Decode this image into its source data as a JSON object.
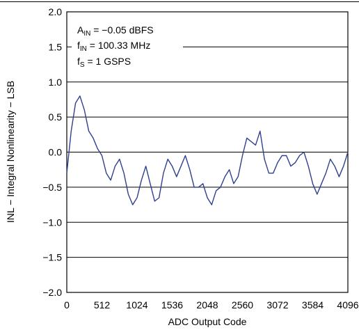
{
  "chart_data": {
    "type": "line",
    "title": "",
    "xlabel": "ADC Output Code",
    "ylabel": "INL − Integral Nonlinearity − LSB",
    "xlim": [
      0,
      4096
    ],
    "ylim": [
      -2.0,
      2.0
    ],
    "x_ticks": [
      0,
      512,
      1024,
      1536,
      2048,
      2560,
      3072,
      3584,
      4096
    ],
    "x_tick_labels": [
      "0",
      "512",
      "1024",
      "1536",
      "2048",
      "2560",
      "3072",
      "3584",
      "4096"
    ],
    "y_ticks": [
      2.0,
      1.5,
      1.0,
      0.5,
      0.0,
      -0.5,
      -1.0,
      -1.5,
      -2.0
    ],
    "y_tick_labels": [
      "2.0",
      "1.5",
      "1.0",
      "0.5",
      "0.0",
      "−0.5",
      "−1.0",
      "−1.5",
      "−2.0"
    ],
    "grid": "horizontal",
    "annotations": [
      {
        "main": "A",
        "sub": "IN",
        "rest": " = −0.05 dBFS"
      },
      {
        "main": "f",
        "sub": "IN",
        "rest": " = 100.33 MHz"
      },
      {
        "main": "f",
        "sub": "S",
        "rest": " = 1 GSPS"
      }
    ],
    "series": [
      {
        "color": "#2e3f8f",
        "x": [
          0,
          64,
          128,
          192,
          256,
          320,
          384,
          448,
          512,
          576,
          640,
          704,
          768,
          832,
          896,
          960,
          1024,
          1088,
          1152,
          1216,
          1280,
          1344,
          1408,
          1472,
          1536,
          1600,
          1664,
          1728,
          1792,
          1856,
          1920,
          1984,
          2048,
          2112,
          2176,
          2240,
          2304,
          2368,
          2432,
          2496,
          2560,
          2624,
          2688,
          2752,
          2816,
          2880,
          2944,
          3008,
          3072,
          3136,
          3200,
          3264,
          3328,
          3392,
          3456,
          3520,
          3584,
          3648,
          3712,
          3776,
          3840,
          3904,
          3968,
          4032,
          4096
        ],
        "y": [
          -0.3,
          0.3,
          0.7,
          0.8,
          0.6,
          0.3,
          0.2,
          0.05,
          -0.05,
          -0.3,
          -0.4,
          -0.2,
          -0.1,
          -0.3,
          -0.6,
          -0.75,
          -0.65,
          -0.4,
          -0.2,
          -0.45,
          -0.7,
          -0.65,
          -0.3,
          -0.1,
          -0.2,
          -0.35,
          -0.2,
          -0.05,
          -0.25,
          -0.5,
          -0.5,
          -0.45,
          -0.65,
          -0.75,
          -0.55,
          -0.5,
          -0.35,
          -0.25,
          -0.45,
          -0.35,
          -0.05,
          0.2,
          0.15,
          0.1,
          0.3,
          -0.1,
          -0.3,
          -0.3,
          -0.15,
          -0.05,
          -0.05,
          -0.2,
          -0.15,
          -0.05,
          0.0,
          -0.2,
          -0.45,
          -0.6,
          -0.45,
          -0.3,
          -0.1,
          -0.2,
          -0.35,
          -0.2,
          0.0
        ]
      }
    ]
  }
}
